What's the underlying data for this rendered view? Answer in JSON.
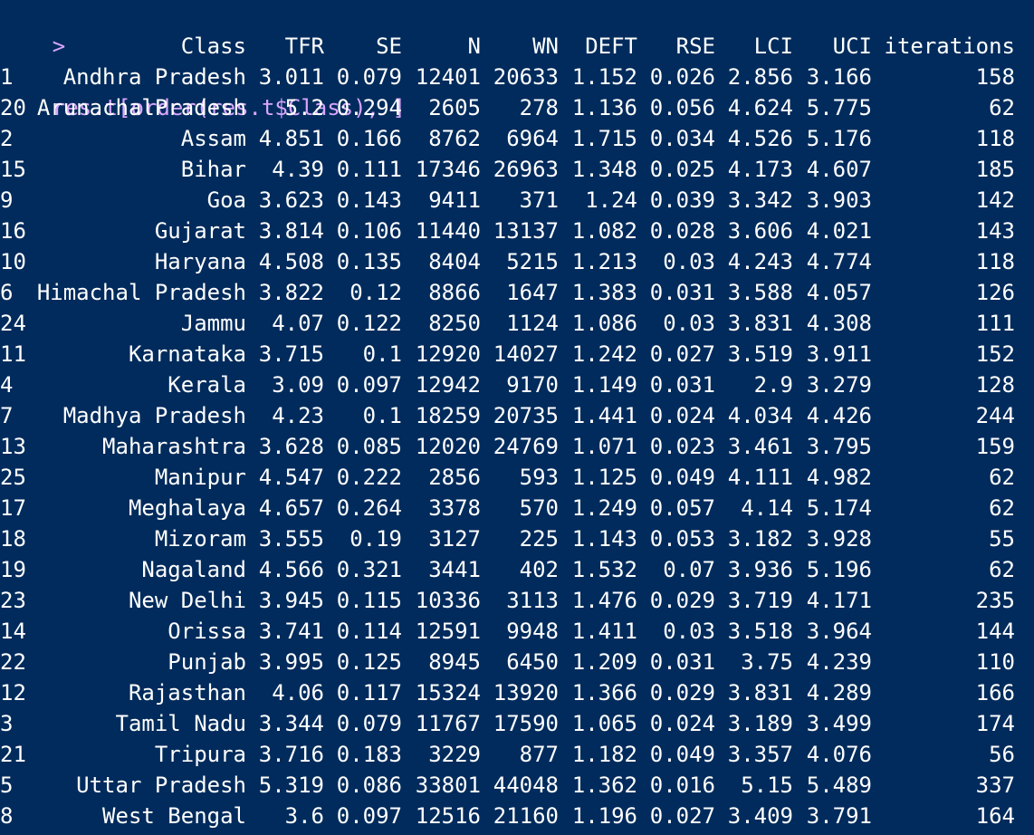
{
  "console": {
    "prompt": ">",
    "command": "res.t[order(res.t$Class), ]",
    "header": [
      "Class",
      "TFR",
      "SE",
      "N",
      "WN",
      "DEFT",
      "RSE",
      "LCI",
      "UCI",
      "iterations"
    ],
    "rows": [
      {
        "rowname": "1",
        "cells": [
          "Andhra Pradesh",
          "3.011",
          "0.079",
          "12401",
          "20633",
          "1.152",
          "0.026",
          "2.856",
          "3.166",
          "158"
        ]
      },
      {
        "rowname": "20",
        "cells": [
          "ArunachalPradesh",
          "5.2",
          "0.294",
          "2605",
          "278",
          "1.136",
          "0.056",
          "4.624",
          "5.775",
          "62"
        ]
      },
      {
        "rowname": "2",
        "cells": [
          "Assam",
          "4.851",
          "0.166",
          "8762",
          "6964",
          "1.715",
          "0.034",
          "4.526",
          "5.176",
          "118"
        ]
      },
      {
        "rowname": "15",
        "cells": [
          "Bihar",
          "4.39",
          "0.111",
          "17346",
          "26963",
          "1.348",
          "0.025",
          "4.173",
          "4.607",
          "185"
        ]
      },
      {
        "rowname": "9",
        "cells": [
          "Goa",
          "3.623",
          "0.143",
          "9411",
          "371",
          "1.24",
          "0.039",
          "3.342",
          "3.903",
          "142"
        ]
      },
      {
        "rowname": "16",
        "cells": [
          "Gujarat",
          "3.814",
          "0.106",
          "11440",
          "13137",
          "1.082",
          "0.028",
          "3.606",
          "4.021",
          "143"
        ]
      },
      {
        "rowname": "10",
        "cells": [
          "Haryana",
          "4.508",
          "0.135",
          "8404",
          "5215",
          "1.213",
          "0.03",
          "4.243",
          "4.774",
          "118"
        ]
      },
      {
        "rowname": "6",
        "cells": [
          "Himachal Pradesh",
          "3.822",
          "0.12",
          "8866",
          "1647",
          "1.383",
          "0.031",
          "3.588",
          "4.057",
          "126"
        ]
      },
      {
        "rowname": "24",
        "cells": [
          "Jammu",
          "4.07",
          "0.122",
          "8250",
          "1124",
          "1.086",
          "0.03",
          "3.831",
          "4.308",
          "111"
        ]
      },
      {
        "rowname": "11",
        "cells": [
          "Karnataka",
          "3.715",
          "0.1",
          "12920",
          "14027",
          "1.242",
          "0.027",
          "3.519",
          "3.911",
          "152"
        ]
      },
      {
        "rowname": "4",
        "cells": [
          "Kerala",
          "3.09",
          "0.097",
          "12942",
          "9170",
          "1.149",
          "0.031",
          "2.9",
          "3.279",
          "128"
        ]
      },
      {
        "rowname": "7",
        "cells": [
          "Madhya Pradesh",
          "4.23",
          "0.1",
          "18259",
          "20735",
          "1.441",
          "0.024",
          "4.034",
          "4.426",
          "244"
        ]
      },
      {
        "rowname": "13",
        "cells": [
          "Maharashtra",
          "3.628",
          "0.085",
          "12020",
          "24769",
          "1.071",
          "0.023",
          "3.461",
          "3.795",
          "159"
        ]
      },
      {
        "rowname": "25",
        "cells": [
          "Manipur",
          "4.547",
          "0.222",
          "2856",
          "593",
          "1.125",
          "0.049",
          "4.111",
          "4.982",
          "62"
        ]
      },
      {
        "rowname": "17",
        "cells": [
          "Meghalaya",
          "4.657",
          "0.264",
          "3378",
          "570",
          "1.249",
          "0.057",
          "4.14",
          "5.174",
          "62"
        ]
      },
      {
        "rowname": "18",
        "cells": [
          "Mizoram",
          "3.555",
          "0.19",
          "3127",
          "225",
          "1.143",
          "0.053",
          "3.182",
          "3.928",
          "55"
        ]
      },
      {
        "rowname": "19",
        "cells": [
          "Nagaland",
          "4.566",
          "0.321",
          "3441",
          "402",
          "1.532",
          "0.07",
          "3.936",
          "5.196",
          "62"
        ]
      },
      {
        "rowname": "23",
        "cells": [
          "New Delhi",
          "3.945",
          "0.115",
          "10336",
          "3113",
          "1.476",
          "0.029",
          "3.719",
          "4.171",
          "235"
        ]
      },
      {
        "rowname": "14",
        "cells": [
          "Orissa",
          "3.741",
          "0.114",
          "12591",
          "9948",
          "1.411",
          "0.03",
          "3.518",
          "3.964",
          "144"
        ]
      },
      {
        "rowname": "22",
        "cells": [
          "Punjab",
          "3.995",
          "0.125",
          "8945",
          "6450",
          "1.209",
          "0.031",
          "3.75",
          "4.239",
          "110"
        ]
      },
      {
        "rowname": "12",
        "cells": [
          "Rajasthan",
          "4.06",
          "0.117",
          "15324",
          "13920",
          "1.366",
          "0.029",
          "3.831",
          "4.289",
          "166"
        ]
      },
      {
        "rowname": "3",
        "cells": [
          "Tamil Nadu",
          "3.344",
          "0.079",
          "11767",
          "17590",
          "1.065",
          "0.024",
          "3.189",
          "3.499",
          "174"
        ]
      },
      {
        "rowname": "21",
        "cells": [
          "Tripura",
          "3.716",
          "0.183",
          "3229",
          "877",
          "1.182",
          "0.049",
          "3.357",
          "4.076",
          "56"
        ]
      },
      {
        "rowname": "5",
        "cells": [
          "Uttar Pradesh",
          "5.319",
          "0.086",
          "33801",
          "44048",
          "1.362",
          "0.016",
          "5.15",
          "5.489",
          "337"
        ]
      },
      {
        "rowname": "8",
        "cells": [
          "West Bengal",
          "3.6",
          "0.097",
          "12516",
          "21160",
          "1.196",
          "0.027",
          "3.409",
          "3.791",
          "164"
        ]
      }
    ]
  },
  "colors": {
    "background": "#002b5c",
    "prompt": "#d9a6ff",
    "text": "#ffffff"
  }
}
